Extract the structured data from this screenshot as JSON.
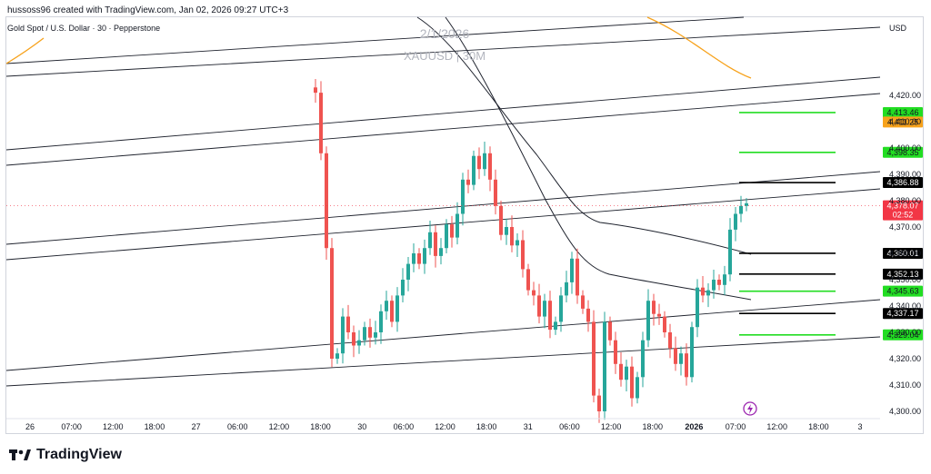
{
  "header": {
    "credit": "hussoss96 created with TradingView.com, Jan 02, 2026 09:27 UTC+3"
  },
  "brand": {
    "name": "TradingView",
    "logo_icon": "tradingview-logo-icon"
  },
  "colors": {
    "up": "#26a69a",
    "down": "#ef5350",
    "green_level": "#22dd22",
    "black_level": "#000000",
    "orange": "#f7a21b",
    "current_price": "#f23645"
  },
  "chart_data": {
    "type": "candlestick",
    "symbol_title": "Gold Spot / U.S. Dollar · 30 · Pepperstone",
    "watermark_line1": "2/1/2026",
    "watermark_line2": "XAUUSD | 30M",
    "currency": "USD",
    "ylim": [
      4297,
      4425
    ],
    "y_ticks": [
      4420,
      4410,
      4400,
      4390,
      4380,
      4370,
      4360,
      4350,
      4340,
      4330,
      4320,
      4310,
      4300
    ],
    "x_ticks": [
      "26",
      "07:00",
      "12:00",
      "18:00",
      "27",
      "06:00",
      "12:00",
      "18:00",
      "30",
      "06:00",
      "12:00",
      "18:00",
      "31",
      "06:00",
      "12:00",
      "18:00",
      "2026",
      "07:00",
      "12:00",
      "18:00",
      "3"
    ],
    "current_price": {
      "value": "4,378.07",
      "countdown": "02:52"
    },
    "level_lines": [
      {
        "label": "4,413.46",
        "value": 4413.46,
        "color": "green"
      },
      {
        "label": "4,411.25",
        "value": 4411.25,
        "color": "orange"
      },
      {
        "label": "4,398.35",
        "value": 4398.35,
        "color": "green"
      },
      {
        "label": "4,386.88",
        "value": 4386.88,
        "color": "black"
      },
      {
        "label": "4,360.01",
        "value": 4360.01,
        "color": "black"
      },
      {
        "label": "4,352.13",
        "value": 4352.13,
        "color": "black"
      },
      {
        "label": "4,345.63",
        "value": 4345.63,
        "color": "green"
      },
      {
        "label": "4,337.17",
        "value": 4337.17,
        "color": "black"
      },
      {
        "label": "4,329.04",
        "value": 4329.04,
        "color": "green"
      }
    ],
    "close_path": [
      4423,
      4421,
      4398,
      4362,
      4320,
      4322,
      4336,
      4330,
      4325,
      4327,
      4332,
      4328,
      4330,
      4338,
      4342,
      4334,
      4344,
      4350,
      4356,
      4360,
      4356,
      4362,
      4368,
      4359,
      4362,
      4371,
      4366,
      4375,
      4388,
      4386,
      4397,
      4392,
      4398,
      4388,
      4378,
      4367,
      4370,
      4363,
      4365,
      4354,
      4346,
      4344,
      4336,
      4342,
      4331,
      4334,
      4344,
      4349,
      4358,
      4344,
      4339,
      4334,
      4306,
      4300,
      4334,
      4327,
      4318,
      4312,
      4317,
      4305,
      4313,
      4327,
      4342,
      4337,
      4336,
      4330,
      4324,
      4318,
      4322,
      4313,
      4332,
      4347,
      4344,
      4346,
      4350,
      4348,
      4352,
      4369,
      4375,
      4378,
      4379
    ]
  }
}
